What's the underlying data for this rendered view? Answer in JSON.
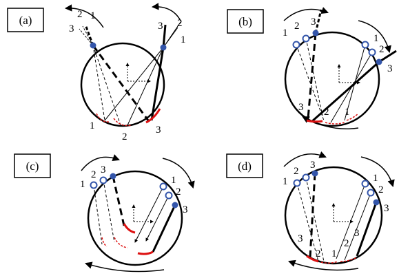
{
  "panels": [
    {
      "label": "(a)",
      "top_numbers": [
        "2",
        "1",
        "3"
      ],
      "right_numbers": [
        "2",
        "3",
        "1"
      ],
      "bottom_numbers": [
        "1",
        "2",
        "3"
      ]
    },
    {
      "label": "(b)",
      "top_numbers": [
        "1",
        "2",
        "3"
      ],
      "right_numbers": [
        "1",
        "2",
        "3"
      ],
      "bottom_numbers": [
        "3",
        "2",
        "1"
      ]
    },
    {
      "label": "(c)",
      "top_numbers": [
        "1",
        "2",
        "3"
      ],
      "right_numbers": [
        "1",
        "2",
        "3"
      ],
      "bottom_numbers": []
    },
    {
      "label": "(d)",
      "top_numbers": [
        "1",
        "2",
        "3"
      ],
      "right_numbers": [
        "1",
        "2",
        "3"
      ],
      "bottom_numbers": [
        "3",
        "2",
        "1",
        "2",
        "3"
      ]
    }
  ],
  "colors": {
    "line": "#000000",
    "ray_end": "#dd1111",
    "fixed_node": "#3355aa",
    "open_node": "#3355aa"
  }
}
